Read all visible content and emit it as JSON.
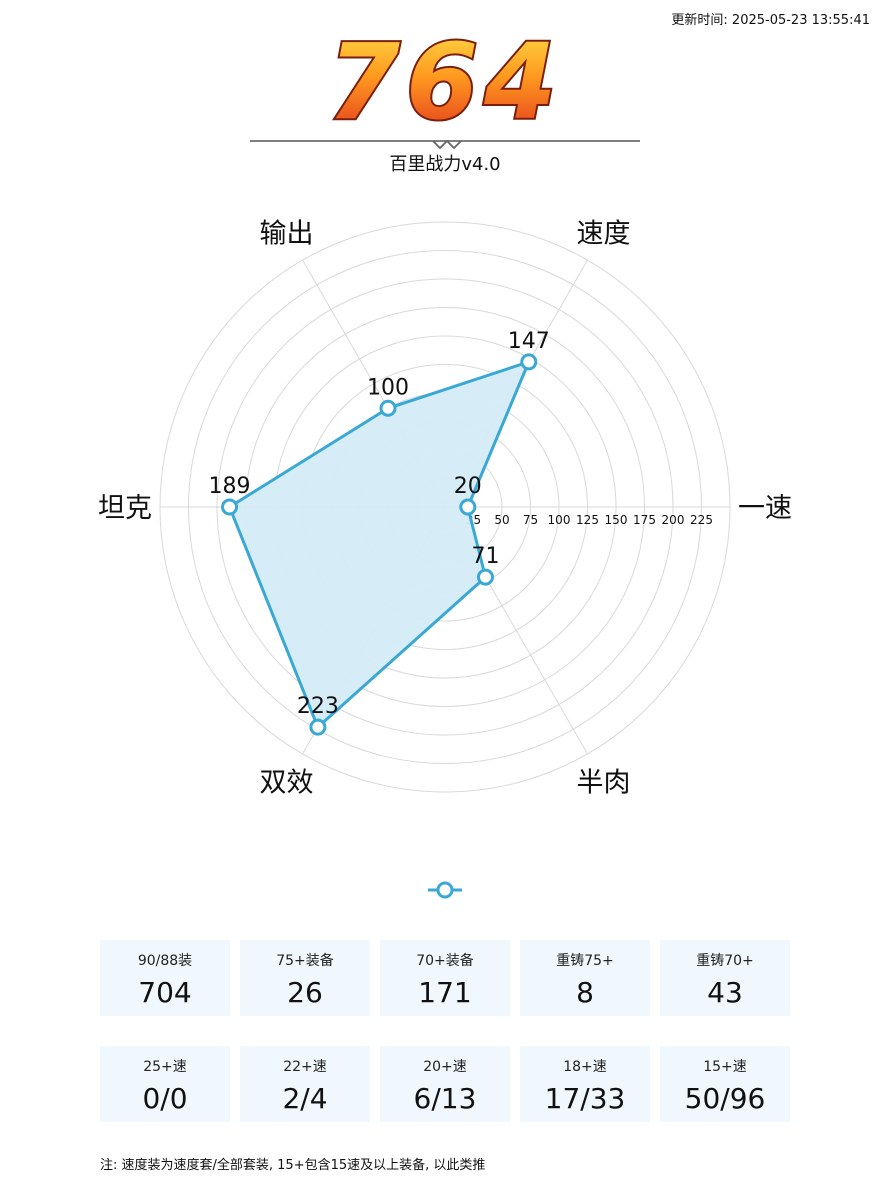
{
  "header": {
    "update_time": "更新时间: 2025-05-23 13:55:41",
    "score": "764",
    "subtitle": "百里战力v4.0"
  },
  "chart_data": {
    "type": "radar",
    "axes": [
      "一速",
      "速度",
      "输出",
      "坦克",
      "双效",
      "半肉"
    ],
    "values": [
      20,
      147,
      100,
      189,
      223,
      71
    ],
    "radial_ticks": [
      25,
      50,
      75,
      100,
      125,
      150,
      175,
      200,
      225
    ],
    "r_max": 250,
    "grid": true,
    "colors": {
      "line": "#3aa8d4",
      "fill": "#d4ecf8",
      "grid": "#d9d9d9"
    }
  },
  "stats_row1": [
    {
      "label": "90/88装",
      "value": "704"
    },
    {
      "label": "75+装备",
      "value": "26"
    },
    {
      "label": "70+装备",
      "value": "171"
    },
    {
      "label": "重铸75+",
      "value": "8"
    },
    {
      "label": "重铸70+",
      "value": "43"
    }
  ],
  "stats_row2": [
    {
      "label": "25+速",
      "value": "0/0"
    },
    {
      "label": "22+速",
      "value": "2/4"
    },
    {
      "label": "20+速",
      "value": "6/13"
    },
    {
      "label": "18+速",
      "value": "17/33"
    },
    {
      "label": "15+速",
      "value": "50/96"
    }
  ],
  "note": "注: 速度装为速度套/全部套装, 15+包含15速及以上装备, 以此类推"
}
